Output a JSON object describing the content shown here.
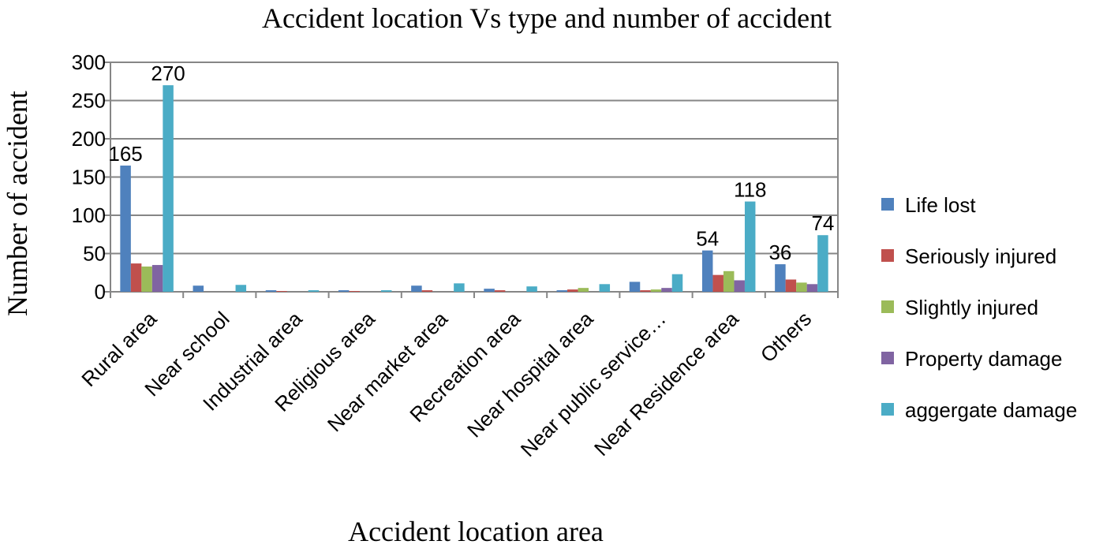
{
  "chart_data": {
    "type": "bar",
    "title": "Accident location Vs type and number of accident",
    "xlabel": "Accident location area",
    "ylabel": "Number of accident",
    "ylim": [
      0,
      300
    ],
    "yticks": [
      0,
      50,
      100,
      150,
      200,
      250,
      300
    ],
    "grid": true,
    "legend_position": "right",
    "categories": [
      "Rural area",
      "Near school",
      "Industrial area",
      "Religious area",
      "Near market area",
      "Recreation area",
      "Near hospital area",
      "Near public service…",
      "Near Residence area",
      "Others"
    ],
    "series": [
      {
        "name": "Life lost",
        "color": "#4F81BD",
        "values": [
          165,
          8,
          2,
          2,
          8,
          4,
          2,
          13,
          54,
          36
        ]
      },
      {
        "name": "Seriously injured",
        "color": "#C0504D",
        "values": [
          37,
          0,
          1,
          1,
          2,
          2,
          3,
          2,
          22,
          16
        ]
      },
      {
        "name": "Slightly injured",
        "color": "#9BBB59",
        "values": [
          33,
          0,
          0,
          0,
          0,
          0,
          5,
          3,
          27,
          12
        ]
      },
      {
        "name": "Property damage",
        "color": "#8064A2",
        "values": [
          35,
          0,
          0,
          0,
          0,
          0,
          0,
          5,
          15,
          10
        ]
      },
      {
        "name": "aggergate damage",
        "color": "#4BACC6",
        "values": [
          270,
          9,
          2,
          2,
          11,
          7,
          10,
          23,
          118,
          74
        ]
      }
    ],
    "data_labels": [
      {
        "category": "Rural area",
        "series": "Life lost",
        "text": "165"
      },
      {
        "category": "Rural area",
        "series": "aggergate damage",
        "text": "270"
      },
      {
        "category": "Near Residence area",
        "series": "Life lost",
        "text": "54"
      },
      {
        "category": "Near Residence area",
        "series": "aggergate damage",
        "text": "118"
      },
      {
        "category": "Others",
        "series": "Life lost",
        "text": "36"
      },
      {
        "category": "Others",
        "series": "aggergate damage",
        "text": "74"
      }
    ]
  }
}
